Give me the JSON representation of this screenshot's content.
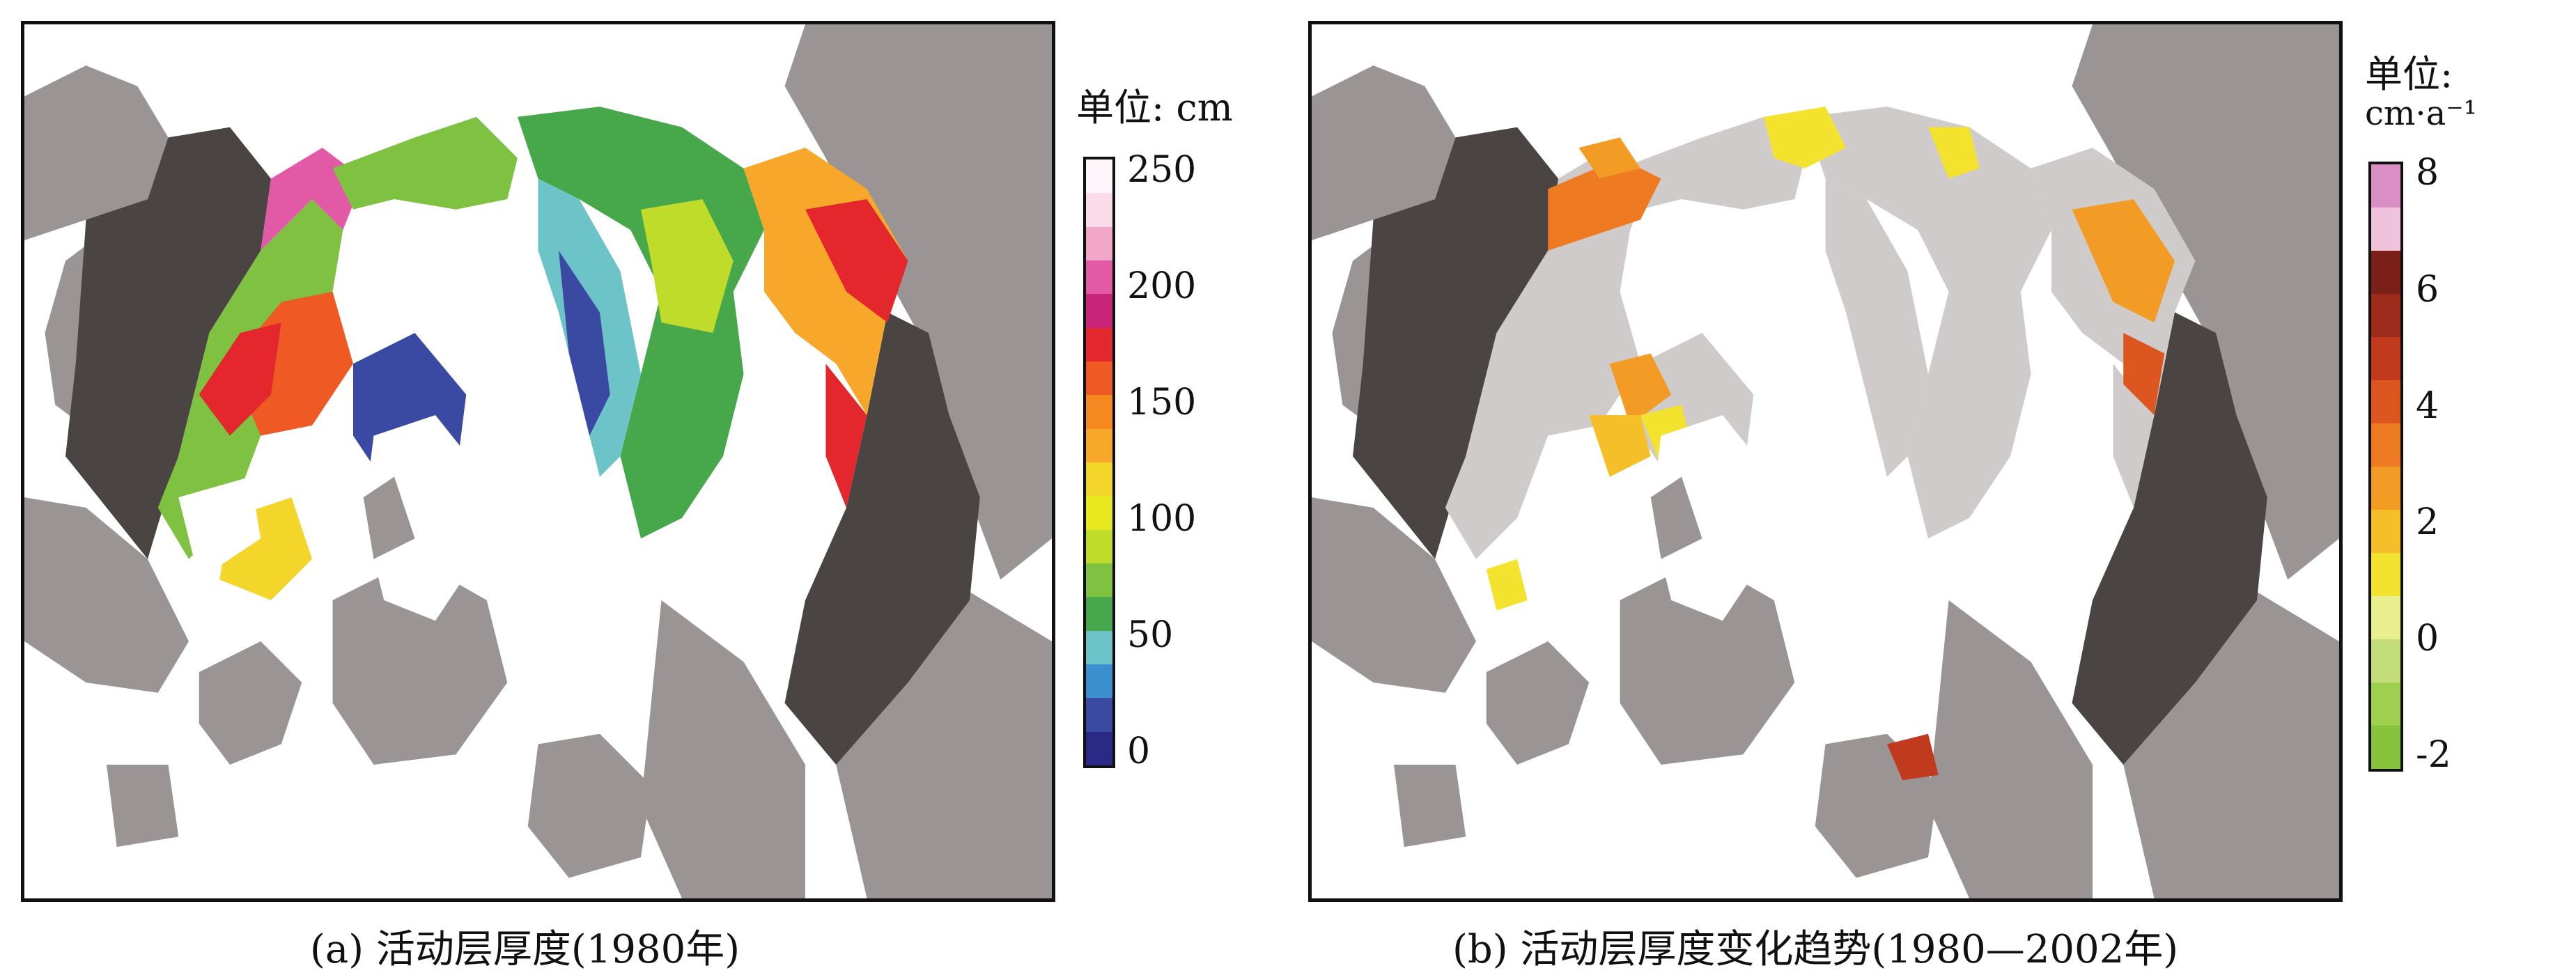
{
  "panels": [
    {
      "id": "a",
      "caption": "(a) 活动层厚度(1980年)",
      "legend": {
        "title_line1": "单位: cm",
        "title_line2": "",
        "ticks": [
          "250",
          "200",
          "150",
          "100",
          "50",
          "0"
        ],
        "colors": [
          "#fdf7fb",
          "#f9dce8",
          "#f1a8c8",
          "#e25aa6",
          "#c8247a",
          "#e3272c",
          "#ef5a24",
          "#f5881f",
          "#f7a82a",
          "#f4d62a",
          "#e8e81e",
          "#bfdc2a",
          "#7fc241",
          "#46a84a",
          "#6cc4c8",
          "#3b8fce",
          "#3a4aa2",
          "#2a2a86"
        ]
      }
    },
    {
      "id": "b",
      "caption": "(b) 活动层厚度变化趋势(1980—2002年)",
      "legend": {
        "title_line1": "单位:",
        "title_line2": "cm·a⁻¹",
        "ticks": [
          "8",
          "6",
          "4",
          "2",
          "0",
          "-2"
        ],
        "colors": [
          "#d98fc4",
          "#efc3dc",
          "#7b1f1a",
          "#9e2a1c",
          "#c13a1e",
          "#dd5620",
          "#ee7a22",
          "#f39c25",
          "#f5bf2a",
          "#f3e22e",
          "#e9ef8c",
          "#c3dd7a",
          "#9fcf4f",
          "#86c23c"
        ]
      }
    }
  ]
}
